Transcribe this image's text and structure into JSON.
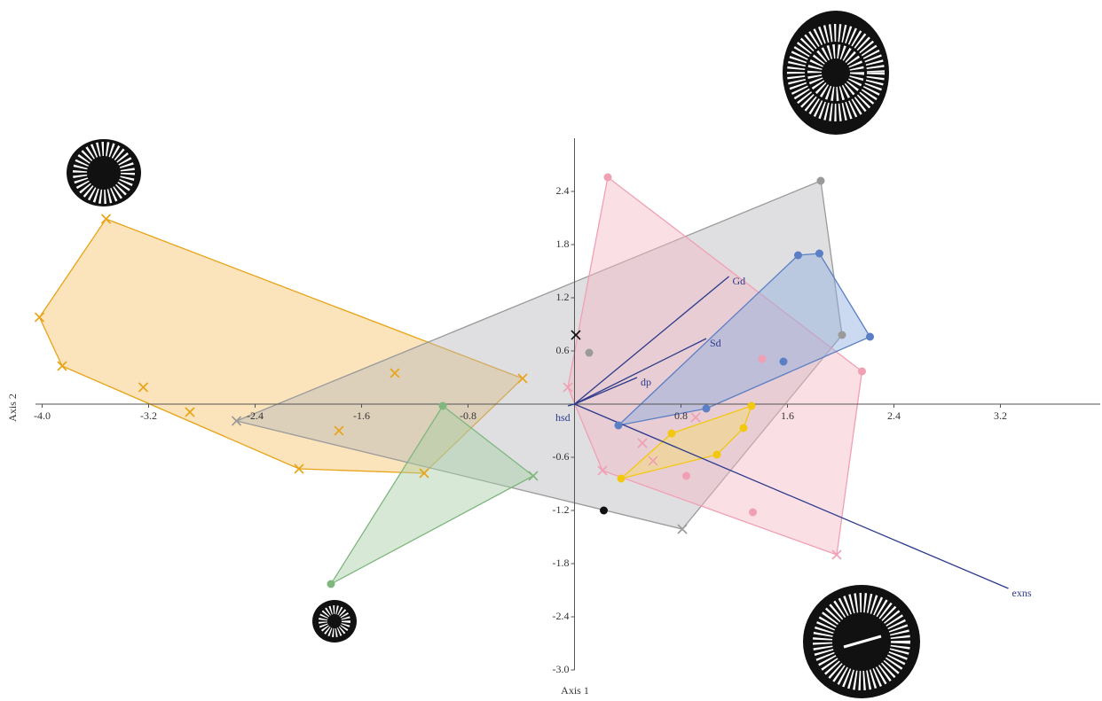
{
  "chart_data": {
    "type": "scatter",
    "xlabel": "Axis 1",
    "ylabel": "Axis 2",
    "xlim": [
      -4.05,
      3.95
    ],
    "ylim": [
      -3.0,
      3.0
    ],
    "xticks": [
      {
        "value": -4,
        "label": "-4.0"
      },
      -3.2,
      -2.4,
      -1.6,
      -0.8,
      0.8,
      1.6,
      2.4,
      3.2
    ],
    "yticks": [
      2.4,
      1.8,
      1.2,
      0.6,
      -0.6,
      -1.2,
      -1.8,
      -2.4,
      {
        "value": -3,
        "label": "-3.0"
      }
    ],
    "series": [
      {
        "color": "#e8a317",
        "fill": "#f6c469",
        "hull": true,
        "x": [
          -3.52,
          -4.02,
          -3.85,
          -3.24,
          -2.89,
          -2.07,
          -1.13,
          -0.39,
          -1.35,
          -1.77
        ],
        "y": [
          2.09,
          0.98,
          0.43,
          0.19,
          -0.09,
          -0.73,
          -0.78,
          0.29,
          0.35,
          -0.3
        ],
        "markers": [
          "x",
          "x",
          "x",
          "x",
          "x",
          "x",
          "x",
          "x",
          "x",
          "x"
        ]
      },
      {
        "color": "#9a9a9a",
        "fill": "#b8b8bc",
        "hull": true,
        "x": [
          1.85,
          2.01,
          0.11,
          -2.54,
          0.81
        ],
        "y": [
          2.52,
          0.78,
          0.58,
          -0.19,
          -1.41
        ],
        "markers": [
          "o",
          "o",
          "o",
          "x",
          "x"
        ]
      },
      {
        "color": "#f0a0b4",
        "fill": "#f4b8c6",
        "hull": true,
        "x": [
          0.25,
          2.16,
          1.97,
          0.21,
          -0.05,
          1.41,
          0.84,
          1.34,
          0.51,
          0.59,
          0.91
        ],
        "y": [
          2.56,
          0.37,
          -1.7,
          -0.75,
          0.19,
          0.51,
          -0.81,
          -1.22,
          -0.44,
          -0.64,
          -0.15
        ],
        "markers": [
          "o",
          "o",
          "x",
          "x",
          "x",
          "o",
          "o",
          "o",
          "x",
          "x",
          "x"
        ]
      },
      {
        "color": "#5b7fc4",
        "fill": "#8eaee0",
        "hull": true,
        "x": [
          0.33,
          0.99,
          1.57,
          1.68,
          1.84,
          2.22
        ],
        "y": [
          -0.24,
          -0.05,
          0.48,
          1.68,
          1.7,
          0.76
        ],
        "markers": [
          "o",
          "o",
          "o",
          "o",
          "o",
          "o"
        ]
      },
      {
        "color": "#f2c80f",
        "fill": "#f6de6a",
        "hull": true,
        "x": [
          0.35,
          0.73,
          1.07,
          1.27,
          1.33
        ],
        "y": [
          -0.84,
          -0.33,
          -0.57,
          -0.27,
          -0.02
        ],
        "markers": [
          "o",
          "o",
          "o",
          "o",
          "o"
        ]
      },
      {
        "color": "#7fb77e",
        "fill": "#a6cfa5",
        "hull": true,
        "x": [
          -0.99,
          -0.31,
          -1.83
        ],
        "y": [
          -0.02,
          -0.81,
          -2.03
        ],
        "markers": [
          "o",
          "x",
          "o"
        ]
      },
      {
        "color": "#111111",
        "fill": "#111111",
        "hull": false,
        "x": [
          0.01,
          0.22
        ],
        "y": [
          0.78,
          -1.2
        ],
        "markers": [
          "x",
          "o"
        ]
      }
    ],
    "vectors_color": "#2c3a8c",
    "vectors": [
      {
        "label": "Gd",
        "x": 1.16,
        "y": 1.44
      },
      {
        "label": "Sd",
        "x": 0.99,
        "y": 0.74
      },
      {
        "label": "dp",
        "x": 0.47,
        "y": 0.3
      },
      {
        "label": "hsd",
        "x": -0.05,
        "y": -0.02
      },
      {
        "label": "exns",
        "x": 3.26,
        "y": -2.08
      }
    ]
  }
}
